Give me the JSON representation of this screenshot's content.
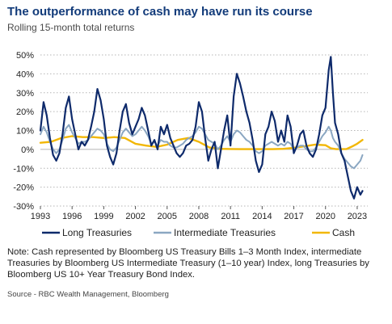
{
  "title": "The outperformance of cash may have run its course",
  "subtitle": "Rolling 15-month total returns",
  "note": "Note: Cash represented by Bloomberg US Treasury Bills 1–3 Month Index, intermediate Treasuries by Bloomberg US Intermediate Treasury (1–10 year) Index, long Treasuries by Bloomberg US 10+ Year Treasury Bond Index.",
  "source": "Source - RBC Wealth Management, Bloomberg",
  "chart_data": {
    "type": "line",
    "xlim": [
      1993,
      2024
    ],
    "ylim": [
      -30,
      50
    ],
    "y_ticks": [
      -30,
      -20,
      -10,
      0,
      10,
      20,
      30,
      40,
      50
    ],
    "y_tick_labels": [
      "-30%",
      "-20%",
      "-10%",
      "0%",
      "10%",
      "20%",
      "30%",
      "40%",
      "50%"
    ],
    "x_ticks": [
      1993,
      1996,
      1999,
      2002,
      2005,
      2008,
      2011,
      2014,
      2017,
      2020,
      2023
    ],
    "x_tick_labels": [
      "1993",
      "1996",
      "1999",
      "2002",
      "2005",
      "2008",
      "2011",
      "2014",
      "2017",
      "2020",
      "2023"
    ],
    "grid": "horizontal dotted",
    "legend_position": "bottom",
    "series": [
      {
        "name": "Long Treasuries",
        "color": "#0e2a6b",
        "x": [
          1993.0,
          1993.3,
          1993.6,
          1993.9,
          1994.2,
          1994.5,
          1994.8,
          1995.1,
          1995.4,
          1995.7,
          1996.0,
          1996.3,
          1996.6,
          1996.9,
          1997.2,
          1997.5,
          1997.8,
          1998.1,
          1998.4,
          1998.7,
          1999.0,
          1999.3,
          1999.6,
          1999.9,
          2000.2,
          2000.5,
          2000.8,
          2001.1,
          2001.4,
          2001.7,
          2002.0,
          2002.3,
          2002.6,
          2002.9,
          2003.2,
          2003.5,
          2003.8,
          2004.1,
          2004.4,
          2004.7,
          2005.0,
          2005.3,
          2005.6,
          2005.9,
          2006.2,
          2006.5,
          2006.8,
          2007.1,
          2007.4,
          2007.7,
          2008.0,
          2008.3,
          2008.6,
          2008.9,
          2009.2,
          2009.5,
          2009.8,
          2010.1,
          2010.4,
          2010.7,
          2011.0,
          2011.3,
          2011.6,
          2011.9,
          2012.2,
          2012.5,
          2012.8,
          2013.1,
          2013.4,
          2013.7,
          2014.0,
          2014.3,
          2014.6,
          2014.9,
          2015.2,
          2015.5,
          2015.8,
          2016.1,
          2016.4,
          2016.7,
          2017.0,
          2017.3,
          2017.6,
          2017.9,
          2018.2,
          2018.5,
          2018.8,
          2019.1,
          2019.4,
          2019.7,
          2020.0,
          2020.3,
          2020.5,
          2020.7,
          2020.9,
          2021.2,
          2021.5,
          2021.8,
          2022.1,
          2022.4,
          2022.7,
          2023.0,
          2023.3,
          2023.5
        ],
        "values": [
          10,
          25,
          18,
          6,
          -3,
          -6,
          -2,
          8,
          22,
          28,
          16,
          8,
          0,
          4,
          2,
          5,
          12,
          20,
          32,
          26,
          16,
          2,
          -4,
          -8,
          -2,
          10,
          20,
          24,
          14,
          8,
          12,
          16,
          22,
          18,
          10,
          2,
          5,
          0,
          12,
          8,
          13,
          6,
          2,
          -2,
          -4,
          -2,
          2,
          3,
          5,
          12,
          25,
          20,
          6,
          -6,
          0,
          4,
          -10,
          0,
          10,
          18,
          2,
          28,
          40,
          35,
          28,
          20,
          14,
          5,
          -6,
          -12,
          -8,
          8,
          12,
          20,
          15,
          4,
          10,
          4,
          18,
          12,
          -2,
          2,
          8,
          10,
          2,
          -2,
          -4,
          0,
          8,
          18,
          22,
          42,
          49,
          30,
          14,
          8,
          -2,
          -6,
          -14,
          -22,
          -26,
          -20,
          -24,
          -22
        ]
      },
      {
        "name": "Intermediate Treasuries",
        "color": "#8ba7c2",
        "x": [
          1993.0,
          1993.3,
          1993.6,
          1993.9,
          1994.2,
          1994.5,
          1994.8,
          1995.1,
          1995.4,
          1995.7,
          1996.0,
          1996.3,
          1996.6,
          1996.9,
          1997.2,
          1997.5,
          1997.8,
          1998.1,
          1998.4,
          1998.7,
          1999.0,
          1999.3,
          1999.6,
          1999.9,
          2000.2,
          2000.5,
          2000.8,
          2001.1,
          2001.4,
          2001.7,
          2002.0,
          2002.3,
          2002.6,
          2002.9,
          2003.2,
          2003.5,
          2003.8,
          2004.1,
          2004.4,
          2004.7,
          2005.0,
          2005.3,
          2005.6,
          2005.9,
          2006.2,
          2006.5,
          2006.8,
          2007.1,
          2007.4,
          2007.7,
          2008.0,
          2008.3,
          2008.6,
          2008.9,
          2009.2,
          2009.5,
          2009.8,
          2010.1,
          2010.4,
          2010.7,
          2011.0,
          2011.3,
          2011.6,
          2011.9,
          2012.2,
          2012.5,
          2012.8,
          2013.1,
          2013.4,
          2013.7,
          2014.0,
          2014.3,
          2014.6,
          2014.9,
          2015.2,
          2015.5,
          2015.8,
          2016.1,
          2016.4,
          2016.7,
          2017.0,
          2017.3,
          2017.6,
          2017.9,
          2018.2,
          2018.5,
          2018.8,
          2019.1,
          2019.4,
          2019.7,
          2020.0,
          2020.3,
          2020.5,
          2020.7,
          2020.9,
          2021.2,
          2021.5,
          2021.8,
          2022.1,
          2022.4,
          2022.7,
          2023.0,
          2023.3,
          2023.5
        ],
        "values": [
          8,
          12,
          9,
          4,
          0,
          -2,
          0,
          5,
          11,
          13,
          9,
          6,
          3,
          4,
          4,
          5,
          7,
          9,
          11,
          10,
          8,
          3,
          0,
          -1,
          1,
          5,
          9,
          11,
          9,
          7,
          8,
          10,
          12,
          10,
          7,
          3,
          4,
          2,
          5,
          4,
          4,
          2,
          1,
          1,
          2,
          3,
          5,
          6,
          7,
          9,
          12,
          11,
          8,
          5,
          4,
          3,
          0,
          2,
          5,
          7,
          4,
          8,
          10,
          9,
          7,
          5,
          4,
          2,
          -1,
          -2,
          -1,
          2,
          3,
          4,
          3,
          2,
          3,
          2,
          4,
          3,
          0,
          1,
          2,
          2,
          0,
          -1,
          -1,
          1,
          4,
          7,
          9,
          12,
          10,
          6,
          4,
          2,
          -2,
          -5,
          -7,
          -9,
          -10,
          -8,
          -6,
          -3
        ]
      },
      {
        "name": "Cash",
        "color": "#f2b705",
        "x": [
          1993.0,
          1994.0,
          1995.0,
          1996.0,
          1997.0,
          1998.0,
          1999.0,
          2000.0,
          2001.0,
          2002.0,
          2003.0,
          2004.0,
          2005.0,
          2006.0,
          2007.0,
          2008.0,
          2009.0,
          2010.0,
          2011.0,
          2012.0,
          2013.0,
          2014.0,
          2015.0,
          2016.0,
          2017.0,
          2018.0,
          2019.0,
          2020.0,
          2020.5,
          2021.0,
          2022.0,
          2022.5,
          2023.0,
          2023.5
        ],
        "values": [
          3.5,
          4,
          6,
          7,
          6.5,
          6.5,
          6,
          6.5,
          6,
          3,
          2,
          1.3,
          2.5,
          5,
          6,
          4,
          1,
          0.3,
          0.2,
          0.1,
          0.1,
          0.1,
          0.1,
          0.3,
          0.8,
          1.6,
          2.5,
          2.2,
          0.6,
          0.1,
          0.2,
          1.5,
          3,
          5
        ]
      }
    ]
  }
}
